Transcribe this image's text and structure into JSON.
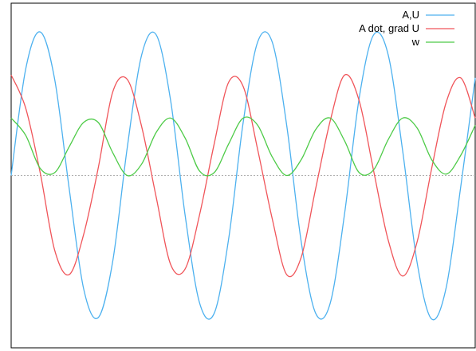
{
  "chart_data": {
    "type": "line",
    "title": "",
    "xlabel": "",
    "ylabel": "",
    "xlim": [
      0,
      6.4
    ],
    "ylim": [
      -1.2,
      1.2
    ],
    "grid": false,
    "zero_line": true,
    "legend_position": "top-right",
    "series": [
      {
        "name": "A,U",
        "color": "#4db1ef",
        "x": [
          0,
          0.2,
          0.4,
          0.6,
          0.8,
          1.0,
          1.2,
          1.4,
          1.6,
          1.8,
          2.0,
          2.2,
          2.4,
          2.6,
          2.8,
          3.0,
          3.2,
          3.4,
          3.6,
          3.8,
          4.0,
          4.2,
          4.4,
          4.6,
          4.8,
          5.0,
          5.2,
          5.4,
          5.6,
          5.8,
          6.0,
          6.2,
          6.4
        ],
        "values": [
          0,
          0.74,
          1.0,
          0.67,
          -0.09,
          -0.79,
          -0.99,
          -0.6,
          0.19,
          0.84,
          0.98,
          0.52,
          -0.28,
          -0.89,
          -0.96,
          -0.44,
          0.37,
          0.93,
          0.93,
          0.35,
          -0.46,
          -0.96,
          -0.89,
          -0.26,
          0.54,
          0.98,
          0.84,
          0.17,
          -0.61,
          -1.0,
          -0.78,
          -0.08,
          0.68
        ]
      },
      {
        "name": "A dot, grad U",
        "color": "#f0555a",
        "x": [
          0,
          0.2,
          0.4,
          0.6,
          0.8,
          1.0,
          1.2,
          1.4,
          1.6,
          1.8,
          2.0,
          2.2,
          2.4,
          2.6,
          2.8,
          3.0,
          3.2,
          3.4,
          3.6,
          3.8,
          4.0,
          4.2,
          4.4,
          4.6,
          4.8,
          5.0,
          5.2,
          5.4,
          5.6,
          5.8,
          6.0,
          6.2,
          6.4
        ],
        "values": [
          0.7,
          0.47,
          0.02,
          -0.52,
          -0.69,
          -0.41,
          0.05,
          0.58,
          0.67,
          0.34,
          -0.15,
          -0.62,
          -0.65,
          -0.27,
          0.22,
          0.65,
          0.62,
          0.18,
          -0.3,
          -0.69,
          -0.57,
          -0.09,
          0.38,
          0.7,
          0.52,
          0.03,
          -0.45,
          -0.7,
          -0.46,
          0.05,
          0.51,
          0.68,
          0.4
        ]
      },
      {
        "name": "w",
        "color": "#4ecb48",
        "x": [
          0,
          0.2,
          0.4,
          0.6,
          0.8,
          1.0,
          1.2,
          1.4,
          1.6,
          1.8,
          2.0,
          2.2,
          2.4,
          2.6,
          2.8,
          3.0,
          3.2,
          3.4,
          3.6,
          3.8,
          4.0,
          4.2,
          4.4,
          4.6,
          4.8,
          5.0,
          5.2,
          5.4,
          5.6,
          5.8,
          6.0,
          6.2,
          6.4
        ],
        "values": [
          0.4,
          0.28,
          0.05,
          0.02,
          0.2,
          0.37,
          0.37,
          0.16,
          0.0,
          0.08,
          0.3,
          0.4,
          0.26,
          0.03,
          0.02,
          0.22,
          0.4,
          0.35,
          0.13,
          0.0,
          0.11,
          0.32,
          0.4,
          0.24,
          0.02,
          0.04,
          0.25,
          0.4,
          0.33,
          0.11,
          0.01,
          0.14,
          0.35
        ]
      }
    ]
  }
}
